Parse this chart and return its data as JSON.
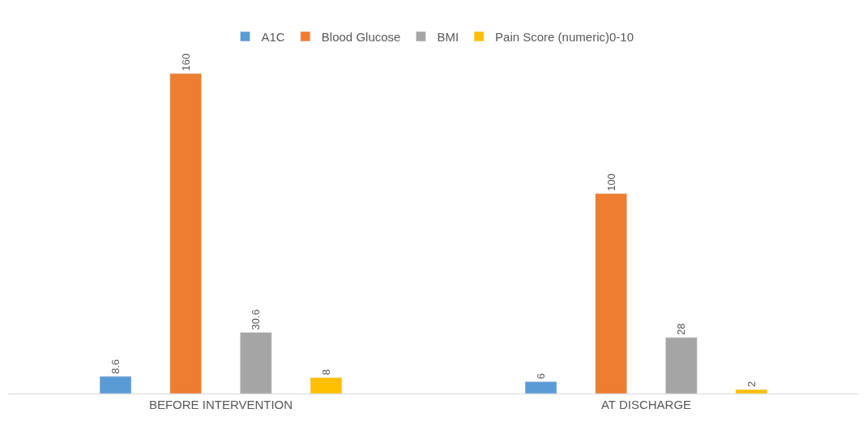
{
  "chart_data": {
    "type": "bar",
    "categories": [
      "BEFORE INTERVENTION",
      "AT DISCHARGE"
    ],
    "series": [
      {
        "name": "A1C",
        "color": "#5b9bd5",
        "values": [
          8.6,
          6
        ]
      },
      {
        "name": "Blood Glucose",
        "color": "#ed7d31",
        "values": [
          160,
          100
        ]
      },
      {
        "name": "BMI",
        "color": "#a5a5a5",
        "values": [
          30.6,
          28
        ]
      },
      {
        "name": "Pain Score (numeric)0-10",
        "color": "#ffc000",
        "values": [
          8,
          2
        ]
      }
    ],
    "data_labels": true,
    "legend": "top"
  }
}
